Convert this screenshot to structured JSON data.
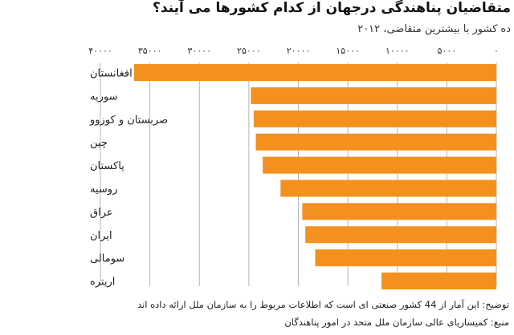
{
  "header": {
    "title": "متقاضیان پناهندگی درجهان از کدام کشورها می آیند؟",
    "subtitle": "ده کشور با بیشترین متقاضی، ۲۰۱۲"
  },
  "footer": {
    "note": "توضیح:  این آمار از 44 کشور صنعتی ای است که اطلاعات مربوط را به سازمان ملل ارائه داده اند",
    "source": "منبع: کمیساریای عالی سازمان ملل متحد در امور پناهندگان"
  },
  "colors": {
    "bar": "#f4901e",
    "grid": "#b5b5b5",
    "tick": "#333333"
  },
  "chart_data": {
    "type": "bar",
    "orientation": "horizontal",
    "x_direction": "right-to-left",
    "categories": [
      "افغانستان",
      "سوریه",
      "صربستان و کوزوو",
      "چین",
      "پاکستان",
      "روسیه",
      "عراق",
      "ایران",
      "سومالی",
      "اریتره"
    ],
    "values": [
      36600,
      24800,
      24500,
      24300,
      23600,
      21800,
      19600,
      19300,
      18300,
      11600
    ],
    "xlim": [
      0,
      40000
    ],
    "xticks": [
      0,
      5000,
      10000,
      15000,
      20000,
      25000,
      30000,
      35000,
      40000
    ],
    "xtick_labels": [
      "۰",
      "۵۰۰۰",
      "۱۰۰۰۰",
      "۱۵۰۰۰",
      "۲۰۰۰۰",
      "۲۵۰۰۰",
      "۳۰۰۰۰",
      "۳۵۰۰۰",
      "۴۰۰۰۰"
    ],
    "tick_position": "top",
    "grid": true,
    "legend": "none"
  }
}
